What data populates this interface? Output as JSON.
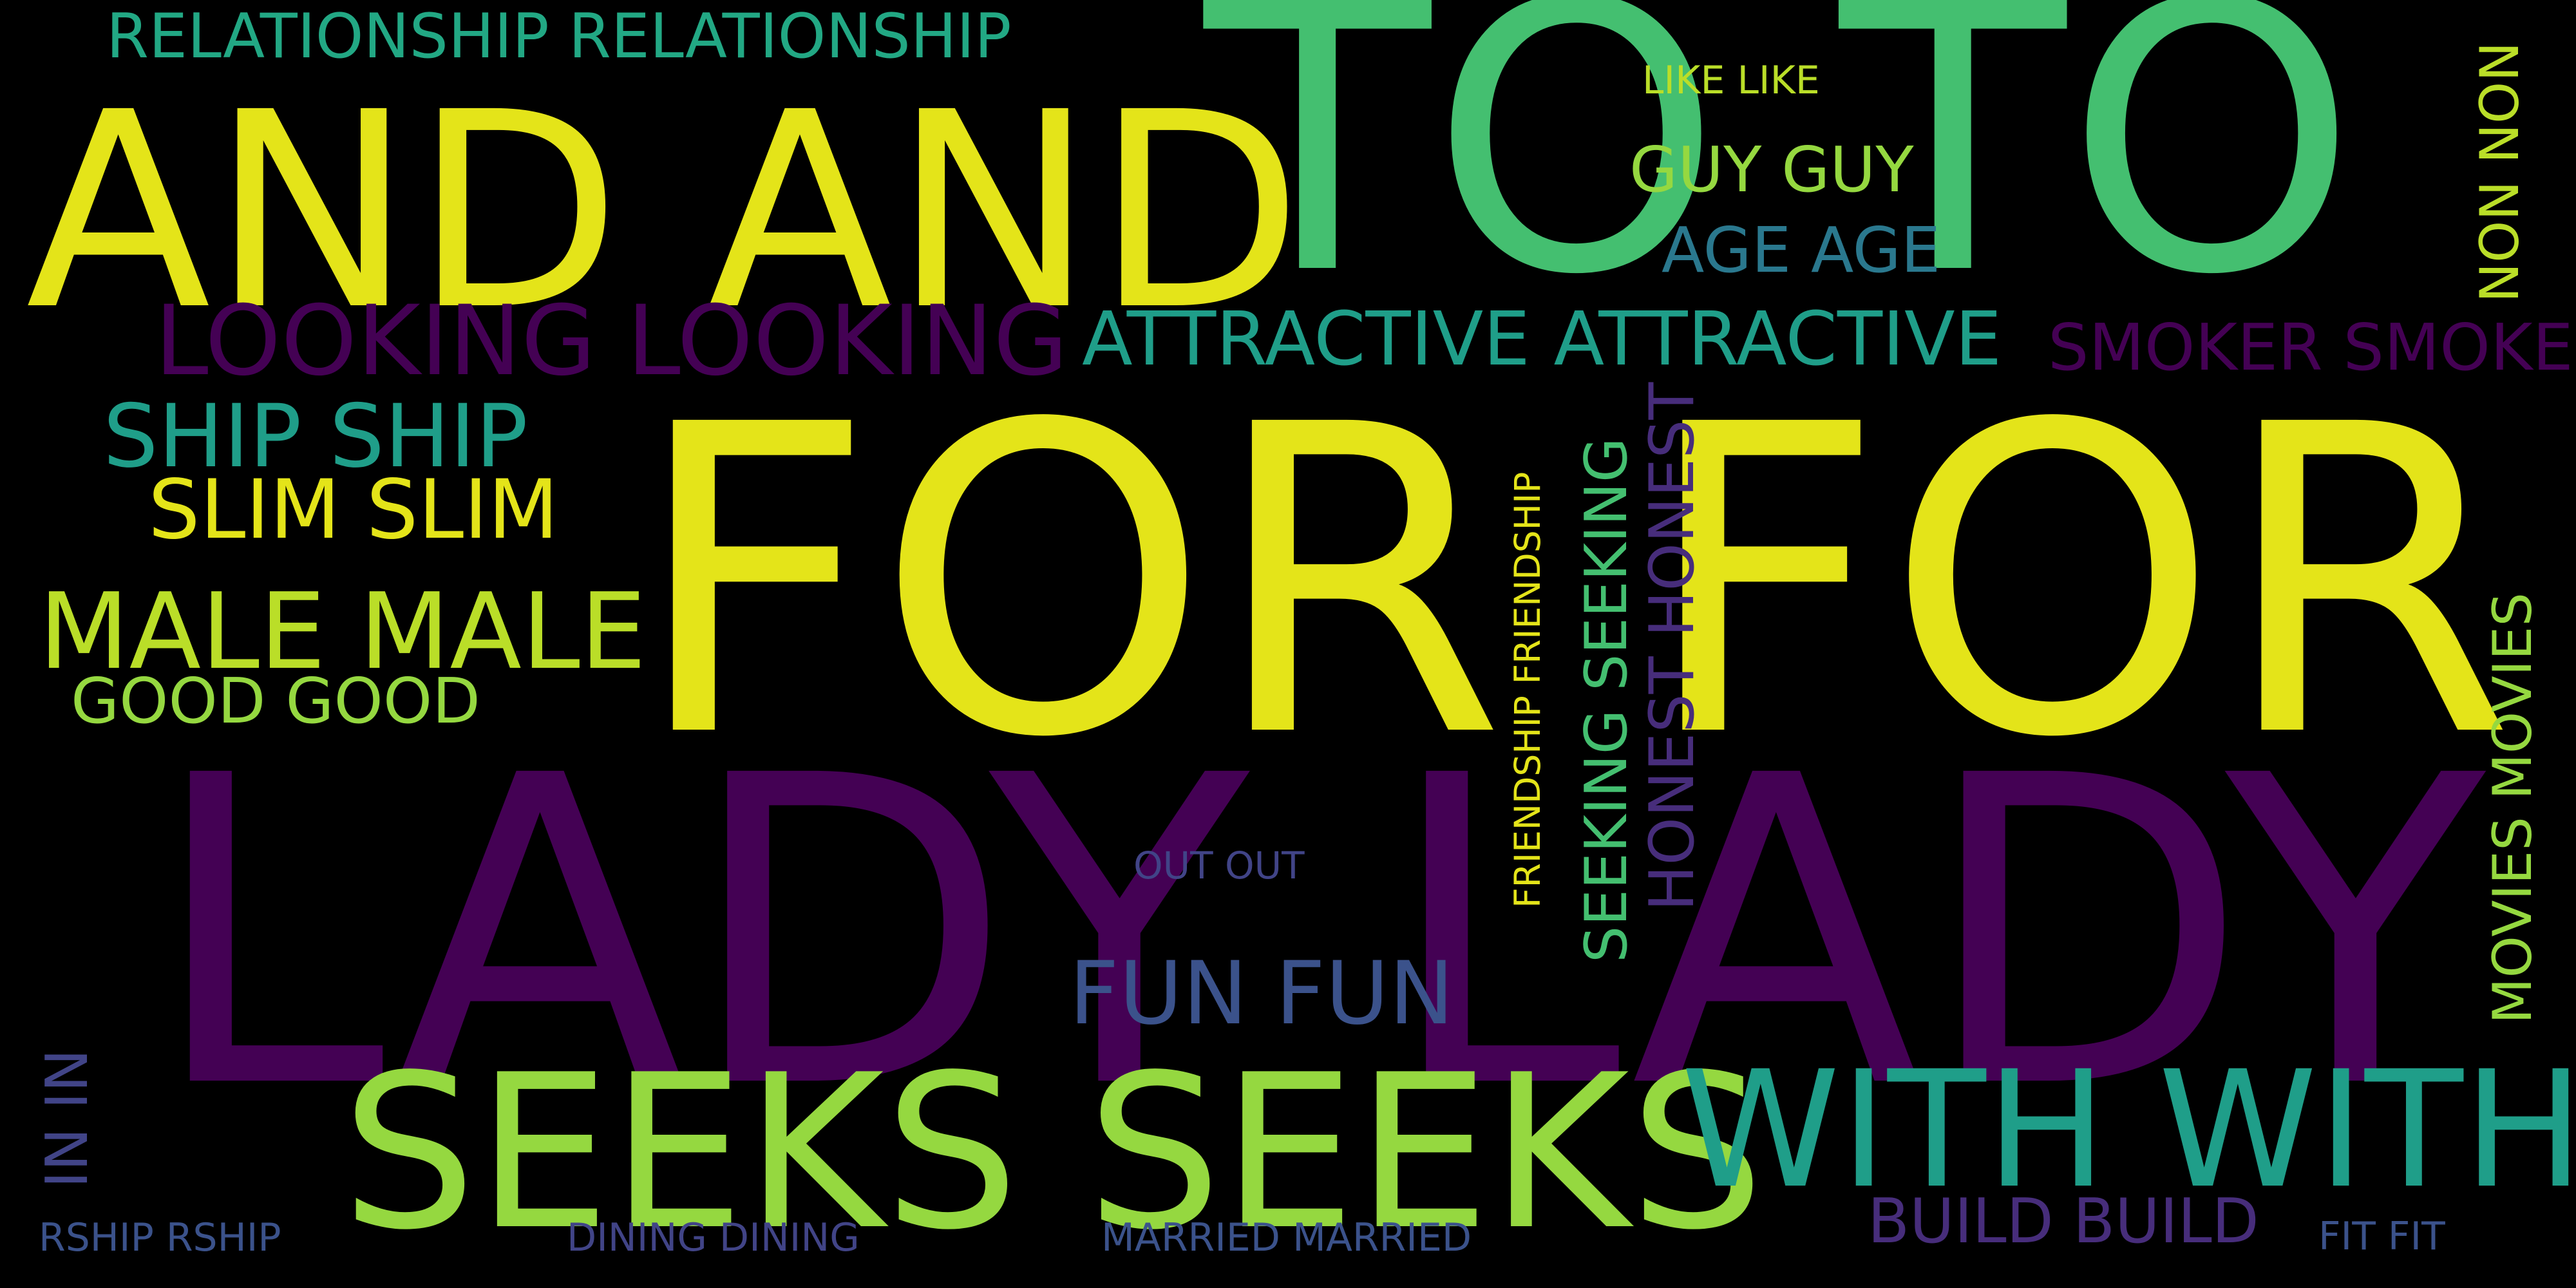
{
  "words": {
    "lady": "LADY LADY",
    "for": "FOR FOR",
    "to": "TO TO",
    "and": "AND AND",
    "seeks": "SEEKS SEEKS",
    "with": "WITH WITH",
    "looking": "LOOKING LOOKING",
    "attractive": "ATTRACTIVE ATTRACTIVE",
    "smoker": "SMOKER SMOKER",
    "relationship": "RELATIONSHIP RELATIONSHIP",
    "ship": "SHIP SHIP",
    "slim": "SLIM SLIM",
    "male": "MALE MALE",
    "good": "GOOD GOOD",
    "guy": "GUY GUY",
    "age": "AGE AGE",
    "like": "LIKE LIKE",
    "fun": "FUN FUN",
    "out": "OUT OUT",
    "build": "BUILD BUILD",
    "fit": "FIT FIT",
    "married": "MARRIED MARRIED",
    "dining": "DINING DINING",
    "rship": "RSHIP RSHIP",
    "non": "NON NON",
    "movies": "MOVIES MOVIES",
    "seeking": "SEEKING SEEKING",
    "honest": "HONEST HONEST",
    "friendship": "FRIENDSHIP FRIENDSHIP",
    "in": "IN IN"
  },
  "colors": {
    "background": "#000000",
    "yellow": "#e4e419",
    "green": "#44bf70",
    "lime": "#95d840",
    "chartreuse": "#bade28",
    "purple": "#440154",
    "violet": "#482475",
    "teal": "#21918c",
    "indigo": "#3b528b"
  }
}
